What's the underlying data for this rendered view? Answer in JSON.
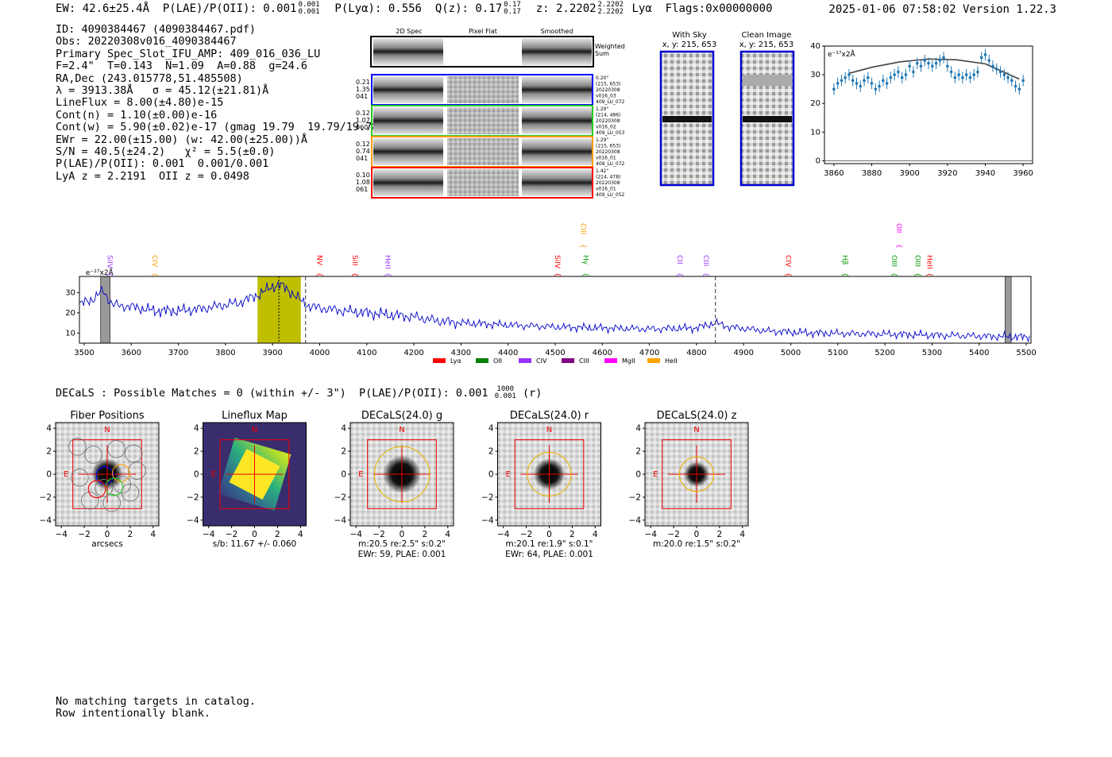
{
  "header": {
    "ew": "EW: 42.6±25.4Å",
    "plae": "P(LAE)/P(OII): 0.001",
    "plae_hi": "0.001",
    "plae_lo": "0.001",
    "plya": "P(Lyα): 0.556",
    "qz": "Q(z): 0.17",
    "qz_hi": "0.17",
    "qz_lo": "0.17",
    "z": "z: 2.2202",
    "z_hi": "2.2202",
    "z_lo": "2.2202",
    "line": "Lyα",
    "flags": "Flags:0x00000000",
    "timestamp": "2025-01-06 07:58:02",
    "version": "Version 1.22.3"
  },
  "info": {
    "lines": [
      "ID: 4090384467 (4090384467.pdf)",
      "Obs: 20220308v016_4090384467",
      "Primary Spec_Slot_IFU_AMP: 409_016_036_LU",
      "F=2.4\"  T=0.143  N=1.09  A=0.88  g=24.6",
      "RA,Dec (243.015778,51.485508)",
      "λ = 3913.38Å   σ = 45.12(±21.81)Å",
      "LineFlux = 8.00(±4.80)e-15",
      "Cont(n) = 1.10(±0.00)e-16",
      "Cont(w) = 5.90(±0.02)e-17 (gmag 19.79  19.79/19.78 *)",
      "EWr = 22.00(±15.00) (w: 42.00(±25.00))Å",
      "S/N = 40.5(±24.2)   χ² = 5.5(±0.0)",
      "P(LAE)/P(OII): 0.001  0.001/0.001",
      "LyA z = 2.2191  OII z = 0.0498"
    ]
  },
  "cutouts": {
    "col_titles": [
      "2D Spec",
      "Pixel Flat",
      "Smoothed"
    ],
    "sum_label": [
      "Weighted",
      "Sum"
    ],
    "rows": [
      {
        "left": [
          "0.21",
          "1.35",
          "041"
        ],
        "right": [
          "0.20\"",
          "(215, 653)",
          "20220308",
          "v016_03",
          "409_LU_072"
        ],
        "color": "#0000ff"
      },
      {
        "left": [
          "0.12",
          "1.07",
          "060"
        ],
        "right": [
          "1.29\"",
          "(214, 486)",
          "20220308",
          "v016_02",
          "409_LU_053"
        ],
        "color": "#22cc22"
      },
      {
        "left": [
          "0.12",
          "0.74",
          "041"
        ],
        "right": [
          "1.29\"",
          "(215, 653)",
          "20220308",
          "v016_01",
          "409_LU_072"
        ],
        "color": "#ff9900"
      },
      {
        "left": [
          "0.10",
          "1.08",
          "061"
        ],
        "right": [
          "1.42\"",
          "(214, 478)",
          "20220308",
          "v016_01",
          "409_LU_052"
        ],
        "color": "#ff0000"
      }
    ]
  },
  "sky": {
    "with_sky_title": "With Sky",
    "with_sky_coords": "x, y: 215, 653",
    "clean_title": "Clean Image",
    "clean_coords": "x, y: 215, 653"
  },
  "chart_data": [
    {
      "type": "scatter",
      "id": "zoom",
      "title": "",
      "ylabel": "e⁻¹⁷x2Å",
      "xlim": [
        3855,
        3965
      ],
      "ylim": [
        -1,
        40
      ],
      "xticks": [
        3860,
        3880,
        3900,
        3920,
        3940,
        3960
      ],
      "yticks": [
        0,
        10,
        20,
        30,
        40
      ],
      "x": [
        3860,
        3862,
        3864,
        3866,
        3868,
        3870,
        3872,
        3874,
        3876,
        3878,
        3880,
        3882,
        3884,
        3886,
        3888,
        3890,
        3892,
        3894,
        3896,
        3898,
        3900,
        3902,
        3904,
        3906,
        3908,
        3910,
        3912,
        3914,
        3916,
        3918,
        3920,
        3922,
        3924,
        3926,
        3928,
        3930,
        3932,
        3934,
        3936,
        3938,
        3940,
        3942,
        3944,
        3946,
        3948,
        3950,
        3952,
        3954,
        3956,
        3958,
        3960
      ],
      "y": [
        25,
        27,
        28,
        29,
        30,
        28,
        27,
        26,
        28,
        29,
        27,
        25,
        26,
        28,
        27,
        29,
        30,
        31,
        29,
        30,
        33,
        31,
        34,
        33,
        35,
        34,
        33,
        34,
        35,
        36,
        33,
        31,
        29,
        30,
        29,
        30,
        29,
        30,
        31,
        36,
        37,
        35,
        33,
        32,
        31,
        30,
        29,
        28,
        26,
        25,
        28
      ],
      "yerr": 2.0,
      "fit_x": [
        3868,
        3880,
        3895,
        3910,
        3925,
        3940,
        3958
      ],
      "fit_y": [
        30.5,
        32.6,
        34.5,
        35.5,
        35.2,
        33.8,
        28.5
      ]
    },
    {
      "type": "line",
      "id": "spectrum",
      "ylabel": "e⁻¹⁷x2Å",
      "xlim": [
        3490,
        5510
      ],
      "ylim": [
        5,
        38
      ],
      "xticks": [
        3500,
        3600,
        3700,
        3800,
        3900,
        4000,
        4100,
        4200,
        4300,
        4400,
        4500,
        4600,
        4700,
        4800,
        4900,
        5000,
        5100,
        5200,
        5300,
        5400,
        5500
      ],
      "yticks": [
        10,
        20,
        30
      ],
      "series_points": [
        [
          3490,
          24
        ],
        [
          3520,
          27
        ],
        [
          3540,
          31
        ],
        [
          3560,
          24
        ],
        [
          3600,
          23
        ],
        [
          3650,
          21
        ],
        [
          3700,
          21
        ],
        [
          3750,
          22
        ],
        [
          3800,
          24
        ],
        [
          3830,
          25
        ],
        [
          3870,
          29
        ],
        [
          3900,
          33
        ],
        [
          3915,
          34
        ],
        [
          3935,
          31
        ],
        [
          3960,
          26
        ],
        [
          3980,
          23
        ],
        [
          4050,
          21
        ],
        [
          4100,
          20
        ],
        [
          4150,
          19
        ],
        [
          4200,
          18
        ],
        [
          4250,
          16
        ],
        [
          4300,
          15
        ],
        [
          4400,
          14
        ],
        [
          4500,
          13
        ],
        [
          4600,
          12.5
        ],
        [
          4700,
          12
        ],
        [
          4800,
          12.5
        ],
        [
          4840,
          15
        ],
        [
          4870,
          13
        ],
        [
          4950,
          11
        ],
        [
          5050,
          10
        ],
        [
          5200,
          9.5
        ],
        [
          5300,
          9
        ],
        [
          5400,
          8.5
        ],
        [
          5510,
          8
        ]
      ],
      "highlight_band": [
        3868,
        3960
      ],
      "center_line": 3913.38,
      "dashed_lines": [
        3970,
        4840
      ],
      "hatched_bands": [
        [
          3535,
          3555
        ],
        [
          5455,
          5468
        ]
      ],
      "line_labels": [
        {
          "name": "SiIV",
          "x": 3545,
          "color": "#9933ff",
          "row": "low"
        },
        {
          "name": "CIV",
          "x": 3640,
          "color": "#ff9900",
          "row": "low"
        },
        {
          "name": "NV",
          "x": 3990,
          "color": "#ff0000",
          "row": "low"
        },
        {
          "name": "SiII",
          "x": 4065,
          "color": "#ff0000",
          "row": "low"
        },
        {
          "name": "HeII",
          "x": 4135,
          "color": "#9933ff",
          "row": "low"
        },
        {
          "name": "SiIV",
          "x": 4495,
          "color": "#ff0000",
          "row": "low"
        },
        {
          "name": "CIII",
          "x": 4550,
          "color": "#ff9900",
          "row": "high"
        },
        {
          "name": "Hγ",
          "x": 4555,
          "color": "#009900",
          "row": "low"
        },
        {
          "name": "CII",
          "x": 4755,
          "color": "#9933ff",
          "row": "low"
        },
        {
          "name": "CIII",
          "x": 4810,
          "color": "#9933ff",
          "row": "low"
        },
        {
          "name": "CIV",
          "x": 4985,
          "color": "#ff0000",
          "row": "low"
        },
        {
          "name": "Hβ",
          "x": 5105,
          "color": "#009900",
          "row": "low"
        },
        {
          "name": "OII",
          "x": 5220,
          "color": "#ff00ff",
          "row": "high"
        },
        {
          "name": "OIII",
          "x": 5210,
          "color": "#009900",
          "row": "low"
        },
        {
          "name": "OIII",
          "x": 5260,
          "color": "#009900",
          "row": "low"
        },
        {
          "name": "HeII",
          "x": 5285,
          "color": "#ff0000",
          "row": "low"
        }
      ],
      "legend": [
        {
          "name": "Lyα",
          "color": "#ff0000"
        },
        {
          "name": "OII",
          "color": "#008000"
        },
        {
          "name": "CIV",
          "color": "#9933ff"
        },
        {
          "name": "CIII",
          "color": "#800080"
        },
        {
          "name": "MgII",
          "color": "#ff00ff"
        },
        {
          "name": "HeII",
          "color": "#ffa500"
        }
      ]
    }
  ],
  "decals": {
    "title": "DECaLS : Possible Matches = 0 (within +/- 3\")  P(LAE)/P(OII): 0.001",
    "plae_hi": "1000",
    "plae_lo": "0.001",
    "band": "(r)",
    "ticks": [
      "−4",
      "−2",
      "0",
      "2",
      "4"
    ],
    "north": "N",
    "east": "E",
    "panels": [
      {
        "title": "Fiber Positions",
        "cap1": "arcsecs",
        "cap2": ""
      },
      {
        "title": "Lineflux Map",
        "cap1": "s/b: 11.67 +/- 0.060",
        "cap2": ""
      },
      {
        "title": "DECaLS(24.0) g",
        "cap1": "m:20.5  re:2.5\"  s:0.2\"",
        "cap2": "EWr: 59, PLAE: 0.001"
      },
      {
        "title": "DECaLS(24.0) r",
        "cap1": "m:20.1  re:1.9\"  s:0.1\"",
        "cap2": "EWr: 64, PLAE: 0.001"
      },
      {
        "title": "DECaLS(24.0) z",
        "cap1": "m:20.0  re:1.5\"  s:0.2\"",
        "cap2": ""
      }
    ]
  },
  "footer": {
    "lines": [
      "No matching targets in catalog.",
      "Row intentionally blank."
    ]
  },
  "colors": {
    "spectrum": "#0000cc",
    "band": "#bfbf00",
    "points": "#1f77b4"
  }
}
